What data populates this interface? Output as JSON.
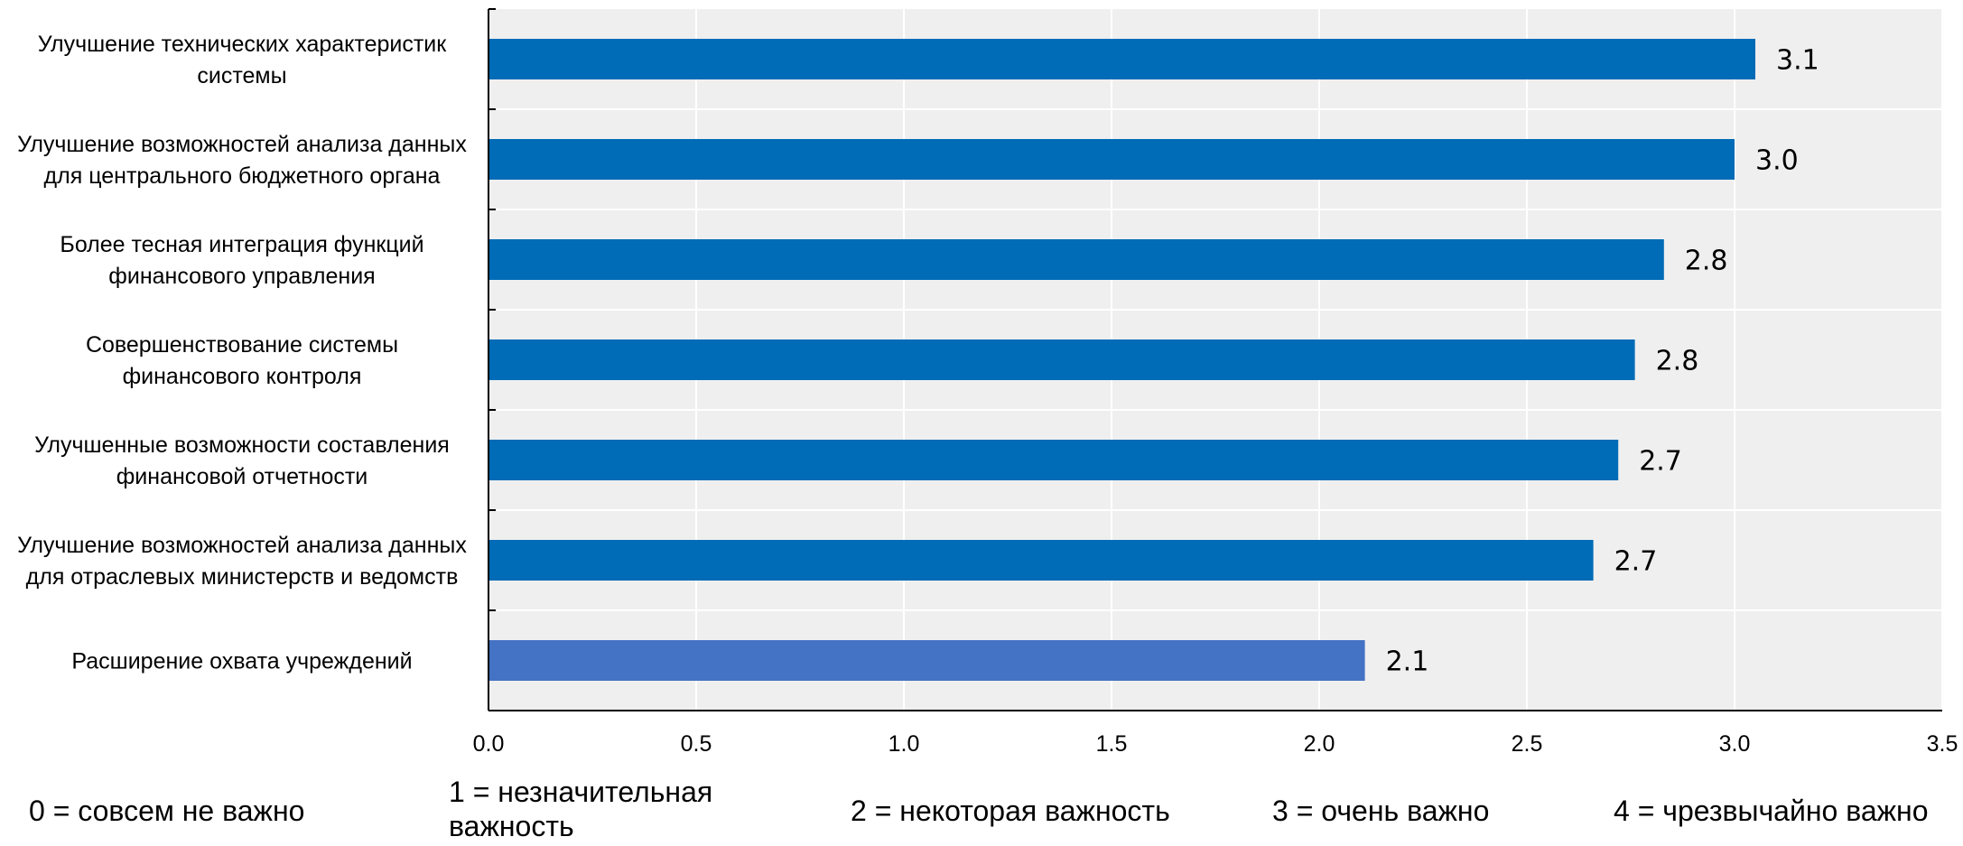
{
  "chart_data": {
    "type": "bar",
    "orientation": "horizontal",
    "categories": [
      [
        "Улучшение технических характеристик",
        "системы"
      ],
      [
        "Улучшение возможностей анализа данных",
        "для центрального бюджетного органа"
      ],
      [
        "Более тесная интеграция функций",
        "финансового управления"
      ],
      [
        "Совершенствование системы",
        "финансового контроля"
      ],
      [
        "Улучшенные возможности составления",
        "финансовой отчетности"
      ],
      [
        "Улучшение возможностей анализа данных",
        "для отраслевых министерств и ведомств"
      ],
      [
        "Расширение охвата учреждений"
      ]
    ],
    "values": [
      3.05,
      3.0,
      2.83,
      2.76,
      2.72,
      2.66,
      2.11
    ],
    "value_labels": [
      "3.1",
      "3.0",
      "2.8",
      "2.8",
      "2.7",
      "2.7",
      "2.1"
    ],
    "xlim": [
      0,
      3.5
    ],
    "xticks": [
      "0.0",
      "0.5",
      "1.0",
      "1.5",
      "2.0",
      "2.5",
      "3.0",
      "3.5"
    ],
    "grid": true,
    "colors": {
      "bar": "#006bb6",
      "bar_highlight": "#4472c4",
      "plot_bg": "#efefef",
      "grid": "#ffffff",
      "axis": "#000000"
    },
    "highlight_index": 6
  },
  "legend_notes": [
    [
      "0 = совсем не важно"
    ],
    [
      "1 = незначительная",
      "важность"
    ],
    [
      "2 = некоторая важность"
    ],
    [
      "3 = очень важно"
    ],
    [
      "4 = чрезвычайно важно"
    ]
  ]
}
